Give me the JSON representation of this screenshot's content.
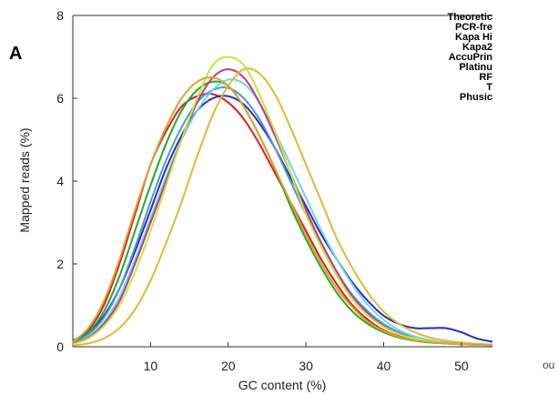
{
  "panel_label": "A",
  "overflow_tick": "ou",
  "chart_data": {
    "type": "line",
    "xlabel": "GC content (%)",
    "ylabel": "Mapped reads (%)",
    "xlim": [
      0,
      54
    ],
    "ylim": [
      0,
      8
    ],
    "xticks": [
      10,
      20,
      30,
      40,
      50
    ],
    "yticks": [
      0,
      2,
      4,
      6,
      8
    ],
    "grid": false,
    "legend_position": "top-right",
    "legend": [
      "Theoretic",
      "PCR-fre",
      "Kapa Hi",
      "Kapa2",
      "AccuPrin",
      "Platinu",
      "RF",
      "T",
      "Phusic"
    ],
    "series": [
      {
        "color": "#d62020",
        "x": [
          0,
          2,
          4,
          6,
          8,
          10,
          12,
          14,
          16,
          18,
          20,
          22,
          24,
          26,
          28,
          30,
          32,
          34,
          36,
          38,
          40,
          42,
          44,
          46,
          48,
          50,
          52,
          54
        ],
        "y": [
          0.1,
          0.4,
          1.0,
          2.0,
          3.2,
          4.4,
          5.2,
          5.8,
          6.05,
          6.1,
          5.9,
          5.5,
          4.9,
          4.2,
          3.5,
          2.8,
          2.1,
          1.5,
          1.0,
          0.65,
          0.4,
          0.25,
          0.18,
          0.12,
          0.1,
          0.08,
          0.06,
          0.05
        ]
      },
      {
        "color": "#2b2bb8",
        "x": [
          0,
          2,
          4,
          6,
          8,
          10,
          12,
          14,
          16,
          18,
          20,
          22,
          24,
          26,
          28,
          30,
          32,
          34,
          36,
          38,
          40,
          42,
          44,
          46,
          48,
          50,
          52,
          54
        ],
        "y": [
          0.15,
          0.35,
          0.75,
          1.4,
          2.3,
          3.3,
          4.3,
          5.1,
          5.7,
          6.0,
          6.05,
          5.85,
          5.4,
          4.8,
          4.1,
          3.4,
          2.7,
          2.1,
          1.55,
          1.1,
          0.75,
          0.55,
          0.45,
          0.45,
          0.45,
          0.35,
          0.2,
          0.12
        ]
      },
      {
        "color": "#22aa22",
        "x": [
          0,
          2,
          4,
          6,
          8,
          10,
          12,
          14,
          16,
          18,
          20,
          22,
          24,
          26,
          28,
          30,
          32,
          34,
          36,
          38,
          40,
          42,
          44,
          46,
          48,
          50,
          52,
          54
        ],
        "y": [
          0.1,
          0.35,
          0.85,
          1.7,
          2.8,
          3.9,
          4.9,
          5.7,
          6.2,
          6.4,
          6.3,
          5.8,
          5.1,
          4.3,
          3.4,
          2.6,
          1.9,
          1.3,
          0.85,
          0.55,
          0.35,
          0.22,
          0.15,
          0.1,
          0.08,
          0.06,
          0.05,
          0.04
        ]
      },
      {
        "color": "#4a9ad8",
        "x": [
          0,
          2,
          4,
          6,
          8,
          10,
          12,
          14,
          16,
          18,
          20,
          22,
          24,
          26,
          28,
          30,
          32,
          34,
          36,
          38,
          40,
          42,
          44,
          46,
          48,
          50,
          52,
          54
        ],
        "y": [
          0.1,
          0.3,
          0.7,
          1.4,
          2.4,
          3.5,
          4.5,
          5.3,
          5.9,
          6.2,
          6.25,
          6.0,
          5.5,
          4.8,
          4.0,
          3.2,
          2.5,
          1.8,
          1.25,
          0.85,
          0.55,
          0.35,
          0.22,
          0.15,
          0.1,
          0.08,
          0.06,
          0.05
        ]
      },
      {
        "color": "#6bd8ea",
        "x": [
          0,
          2,
          4,
          6,
          8,
          10,
          12,
          14,
          16,
          18,
          20,
          22,
          24,
          26,
          28,
          30,
          32,
          34,
          36,
          38,
          40,
          42,
          44,
          46,
          48,
          50,
          52,
          54
        ],
        "y": [
          0.08,
          0.25,
          0.6,
          1.2,
          2.1,
          3.1,
          4.1,
          5.0,
          5.7,
          6.2,
          6.45,
          6.35,
          5.9,
          5.2,
          4.4,
          3.6,
          2.8,
          2.1,
          1.5,
          1.0,
          0.65,
          0.4,
          0.25,
          0.16,
          0.1,
          0.07,
          0.05,
          0.04
        ]
      },
      {
        "color": "#c03a8a",
        "x": [
          0,
          2,
          4,
          6,
          8,
          10,
          12,
          14,
          16,
          18,
          20,
          22,
          24,
          26,
          28,
          30,
          32,
          34,
          36,
          38,
          40,
          42,
          44,
          46,
          48,
          50,
          52,
          54
        ],
        "y": [
          0.08,
          0.22,
          0.55,
          1.1,
          2.0,
          3.0,
          4.0,
          5.0,
          5.9,
          6.5,
          6.7,
          6.5,
          5.9,
          5.1,
          4.2,
          3.3,
          2.5,
          1.8,
          1.2,
          0.8,
          0.5,
          0.3,
          0.2,
          0.13,
          0.08,
          0.06,
          0.05,
          0.04
        ]
      },
      {
        "color": "#c8e63a",
        "x": [
          0,
          2,
          4,
          6,
          8,
          10,
          12,
          14,
          16,
          18,
          20,
          22,
          24,
          26,
          28,
          30,
          32,
          34,
          36,
          38,
          40,
          42,
          44,
          46,
          48,
          50,
          52,
          54
        ],
        "y": [
          0.06,
          0.2,
          0.5,
          1.0,
          1.8,
          2.8,
          3.9,
          5.0,
          6.0,
          6.8,
          7.0,
          6.8,
          6.1,
          5.2,
          4.2,
          3.2,
          2.4,
          1.7,
          1.15,
          0.75,
          0.48,
          0.3,
          0.2,
          0.13,
          0.08,
          0.06,
          0.05,
          0.04
        ]
      },
      {
        "color": "#e6b830",
        "x": [
          0,
          2,
          4,
          6,
          8,
          10,
          12,
          14,
          16,
          18,
          20,
          22,
          24,
          26,
          28,
          30,
          32,
          34,
          36,
          38,
          40,
          42,
          44,
          46,
          48,
          50,
          52,
          54
        ],
        "y": [
          0.03,
          0.08,
          0.2,
          0.45,
          0.9,
          1.6,
          2.5,
          3.5,
          4.6,
          5.6,
          6.3,
          6.7,
          6.6,
          6.1,
          5.3,
          4.4,
          3.5,
          2.6,
          1.9,
          1.3,
          0.85,
          0.55,
          0.35,
          0.22,
          0.15,
          0.1,
          0.07,
          0.05
        ]
      },
      {
        "color": "#e0a030",
        "x": [
          0,
          2,
          4,
          6,
          8,
          10,
          12,
          14,
          16,
          18,
          20,
          22,
          24,
          26,
          28,
          30,
          32,
          34,
          36,
          38,
          40,
          42,
          44,
          46,
          48,
          50,
          52,
          54
        ],
        "y": [
          0.12,
          0.45,
          1.1,
          2.1,
          3.3,
          4.4,
          5.3,
          6.0,
          6.4,
          6.5,
          6.3,
          5.8,
          5.1,
          4.3,
          3.5,
          2.7,
          2.0,
          1.4,
          0.95,
          0.6,
          0.38,
          0.24,
          0.16,
          0.11,
          0.08,
          0.06,
          0.05,
          0.04
        ]
      }
    ]
  }
}
